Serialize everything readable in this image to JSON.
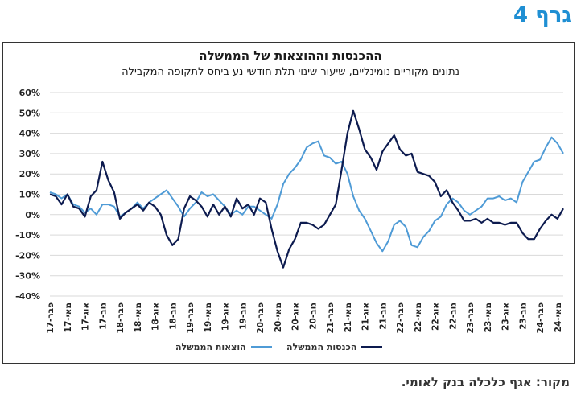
{
  "header": {
    "graph_number": "גרף 4"
  },
  "footer": {
    "source": "מקור: אגף כלכלה בנק לאומי."
  },
  "colors": {
    "revenue": "#0d1b4f",
    "expenses": "#4f9bd6",
    "grid": "#d9d9d9"
  },
  "chart_data": {
    "type": "line",
    "title": "ההכנסות וההוצאות של הממשלה",
    "subtitle": "נתונים מקוריים נומינליים, שיעור שינוי תלת חודשי נע ביחס לתקופה המקבילה",
    "xlabel": "",
    "ylabel": "",
    "ylim": [
      -40,
      60
    ],
    "y_ticks": [
      "60%",
      "50%",
      "40%",
      "30%",
      "20%",
      "10%",
      "0%",
      "-10%",
      "-20%",
      "-30%",
      "-40%"
    ],
    "grid": "horizontal",
    "legend_position": "bottom",
    "x_tick_labels": [
      "פבר-17",
      "מאי-17",
      "אוג-17",
      "נוב-17",
      "פבר-18",
      "מאי-18",
      "אוג-18",
      "נוב-18",
      "פבר-19",
      "מאי-19",
      "אוג-19",
      "נוב-19",
      "פבר-20",
      "מאי-20",
      "אוג-20",
      "נוב-20",
      "פבר-21",
      "מאי-21",
      "אוג-21",
      "נוב-21",
      "פבר-22",
      "מאי-22",
      "אוג-22",
      "נוב-22",
      "פבר-23",
      "מאי-23",
      "אוג-23",
      "נוב-23",
      "פבר-24",
      "מאי-24"
    ],
    "x_range": [
      "2017-02",
      "2024-05"
    ],
    "series": [
      {
        "name": "הכנסות הממשלה",
        "values": [
          10,
          9,
          5,
          10,
          4,
          3,
          -1,
          9,
          12,
          26,
          17,
          11,
          -2,
          1,
          3,
          5,
          2,
          6,
          4,
          0,
          -10,
          -15,
          -12,
          3,
          9,
          7,
          4,
          -1,
          5,
          0,
          4,
          -1,
          8,
          3,
          5,
          0,
          8,
          6,
          -7,
          -18,
          -26,
          -17,
          -12,
          -4,
          -4,
          -5,
          -7,
          -5,
          0,
          5,
          22,
          40,
          51,
          42,
          32,
          28,
          22,
          31,
          35,
          39,
          32,
          29,
          30,
          21,
          20,
          19,
          16,
          9,
          12,
          6,
          2,
          -3,
          -3,
          -2,
          -4,
          -2,
          -4,
          -4,
          -5,
          -4,
          -4,
          -9,
          -12,
          -12,
          -7,
          -3,
          0,
          -2,
          3
        ]
      },
      {
        "name": "הוצאות הממשלה",
        "values": [
          11,
          10,
          8,
          10,
          5,
          4,
          1,
          3,
          0,
          5,
          5,
          4,
          -1,
          1,
          3,
          6,
          3,
          6,
          8,
          10,
          12,
          8,
          4,
          -1,
          3,
          6,
          11,
          9,
          10,
          7,
          4,
          0,
          2,
          0,
          4,
          4,
          2,
          0,
          -2,
          5,
          15,
          20,
          23,
          27,
          33,
          35,
          36,
          29,
          28,
          25,
          26,
          20,
          9,
          2,
          -2,
          -8,
          -14,
          -18,
          -13,
          -5,
          -3,
          -6,
          -15,
          -16,
          -11,
          -8,
          -3,
          -1,
          5,
          8,
          6,
          2,
          0,
          2,
          4,
          8,
          8,
          9,
          7,
          8,
          6,
          16,
          21,
          26,
          27,
          33,
          38,
          35,
          30
        ]
      }
    ]
  }
}
